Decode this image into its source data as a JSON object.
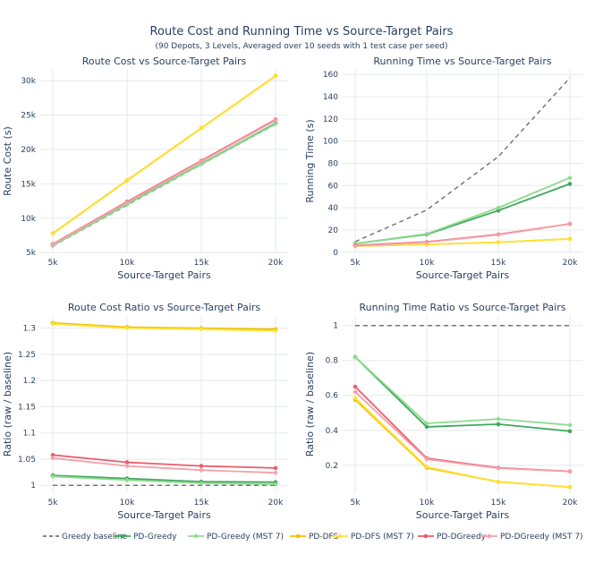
{
  "title": "Route Cost and Running Time vs Source-Target Pairs",
  "subtitle": "(90 Depots, 3 Levels, Averaged over 10 seeds with 1 test case per seed)",
  "series_styles": [
    {
      "name": "Greedy baseline",
      "color": "#777777",
      "dash": true,
      "marker": false
    },
    {
      "name": "PD-Greedy",
      "color": "#3fa85c",
      "dash": false,
      "marker": "circle"
    },
    {
      "name": "PD-Greedy (MST 7)",
      "color": "#8fdb8f",
      "dash": false,
      "marker": "diamond"
    },
    {
      "name": "PD-DFS",
      "color": "#f0c000",
      "dash": false,
      "marker": "circle"
    },
    {
      "name": "PD-DFS (MST 7)",
      "color": "#ffe135",
      "dash": false,
      "marker": "diamond"
    },
    {
      "name": "PD-DGreedy",
      "color": "#ef5a6a",
      "dash": false,
      "marker": "circle"
    },
    {
      "name": "PD-DGreedy (MST 7)",
      "color": "#f4a0a8",
      "dash": false,
      "marker": "diamond"
    }
  ],
  "chart_data": [
    {
      "type": "line",
      "title": "Route Cost vs Source-Target Pairs",
      "xlabel": "Source-Target Pairs",
      "ylabel": "Route Cost (s)",
      "categories": [
        "5k",
        "10k",
        "15k",
        "20k"
      ],
      "ylim": [
        4900,
        31700
      ],
      "yticks": [
        5000,
        10000,
        15000,
        20000,
        25000,
        30000
      ],
      "ytick_labels": [
        "5k",
        "10k",
        "15k",
        "20k",
        "25k",
        "30k"
      ],
      "series": [
        {
          "name": "Greedy baseline",
          "values": [
            5950,
            11900,
            17800,
            23650
          ]
        },
        {
          "name": "PD-Greedy",
          "values": [
            6050,
            12050,
            17900,
            23800
          ]
        },
        {
          "name": "PD-Greedy (MST 7)",
          "values": [
            6000,
            12000,
            17850,
            23700
          ]
        },
        {
          "name": "PD-DFS",
          "values": [
            7800,
            15500,
            23100,
            30700
          ]
        },
        {
          "name": "PD-DFS (MST 7)",
          "values": [
            7750,
            15450,
            23050,
            30650
          ]
        },
        {
          "name": "PD-DGreedy",
          "values": [
            6250,
            12400,
            18350,
            24350
          ]
        },
        {
          "name": "PD-DGreedy (MST 7)",
          "values": [
            6200,
            12300,
            18250,
            24250
          ]
        }
      ]
    },
    {
      "type": "line",
      "title": "Running Time vs Source-Target Pairs",
      "xlabel": "Source-Target Pairs",
      "ylabel": "Running Time (s)",
      "categories": [
        "5k",
        "10k",
        "15k",
        "20k"
      ],
      "ylim": [
        -1,
        165
      ],
      "yticks": [
        0,
        20,
        40,
        60,
        80,
        100,
        120,
        140,
        160
      ],
      "ytick_labels": [
        "0",
        "20",
        "40",
        "60",
        "80",
        "100",
        "120",
        "140",
        "160"
      ],
      "series": [
        {
          "name": "Greedy baseline",
          "values": [
            9.5,
            38,
            86,
            157
          ]
        },
        {
          "name": "PD-Greedy",
          "values": [
            7.8,
            16,
            37.5,
            61.5
          ]
        },
        {
          "name": "PD-Greedy (MST 7)",
          "values": [
            7.8,
            16.5,
            40,
            67
          ]
        },
        {
          "name": "PD-DFS",
          "values": [
            5.5,
            7,
            9,
            12
          ]
        },
        {
          "name": "PD-DFS (MST 7)",
          "values": [
            5.5,
            7,
            9,
            12
          ]
        },
        {
          "name": "PD-DGreedy",
          "values": [
            6.2,
            9.2,
            16,
            25.5
          ]
        },
        {
          "name": "PD-DGreedy (MST 7)",
          "values": [
            5.8,
            9,
            15.7,
            25.5
          ]
        }
      ]
    },
    {
      "type": "line",
      "title": "Route Cost Ratio vs Source-Target Pairs",
      "xlabel": "Source-Target Pairs",
      "ylabel": "Ratio (raw / baseline)",
      "categories": [
        "5k",
        "10k",
        "15k",
        "20k"
      ],
      "ylim": [
        0.985,
        1.325
      ],
      "yticks": [
        1,
        1.05,
        1.1,
        1.15,
        1.2,
        1.25,
        1.3
      ],
      "ytick_labels": [
        "1",
        "1.05",
        "1.1",
        "1.15",
        "1.2",
        "1.25",
        "1.3"
      ],
      "series": [
        {
          "name": "Greedy baseline",
          "values": [
            1,
            1,
            1,
            1
          ]
        },
        {
          "name": "PD-Greedy",
          "values": [
            1.019,
            1.013,
            1.007,
            1.006
          ]
        },
        {
          "name": "PD-Greedy (MST 7)",
          "values": [
            1.017,
            1.01,
            1.004,
            1.002
          ]
        },
        {
          "name": "PD-DFS",
          "values": [
            1.31,
            1.302,
            1.3,
            1.298
          ]
        },
        {
          "name": "PD-DFS (MST 7)",
          "values": [
            1.308,
            1.3,
            1.298,
            1.295
          ]
        },
        {
          "name": "PD-DGreedy",
          "values": [
            1.058,
            1.044,
            1.037,
            1.033
          ]
        },
        {
          "name": "PD-DGreedy (MST 7)",
          "values": [
            1.052,
            1.037,
            1.029,
            1.024
          ]
        }
      ]
    },
    {
      "type": "line",
      "title": "Running Time Ratio vs Source-Target Pairs",
      "xlabel": "Source-Target Pairs",
      "ylabel": "Ratio (raw / baseline)",
      "categories": [
        "5k",
        "10k",
        "15k",
        "20k"
      ],
      "ylim": [
        0.04,
        1.06
      ],
      "yticks": [
        0.2,
        0.4,
        0.6,
        0.8,
        1
      ],
      "ytick_labels": [
        "0.2",
        "0.4",
        "0.6",
        "0.8",
        "1"
      ],
      "series": [
        {
          "name": "Greedy baseline",
          "values": [
            1,
            1,
            1,
            1
          ]
        },
        {
          "name": "PD-Greedy",
          "values": [
            0.82,
            0.42,
            0.435,
            0.395
          ]
        },
        {
          "name": "PD-Greedy (MST 7)",
          "values": [
            0.82,
            0.44,
            0.465,
            0.43
          ]
        },
        {
          "name": "PD-DFS",
          "values": [
            0.575,
            0.185,
            0.105,
            0.075
          ]
        },
        {
          "name": "PD-DFS (MST 7)",
          "values": [
            0.585,
            0.19,
            0.105,
            0.075
          ]
        },
        {
          "name": "PD-DGreedy",
          "values": [
            0.65,
            0.24,
            0.185,
            0.165
          ]
        },
        {
          "name": "PD-DGreedy (MST 7)",
          "values": [
            0.62,
            0.235,
            0.183,
            0.165
          ]
        }
      ]
    }
  ]
}
